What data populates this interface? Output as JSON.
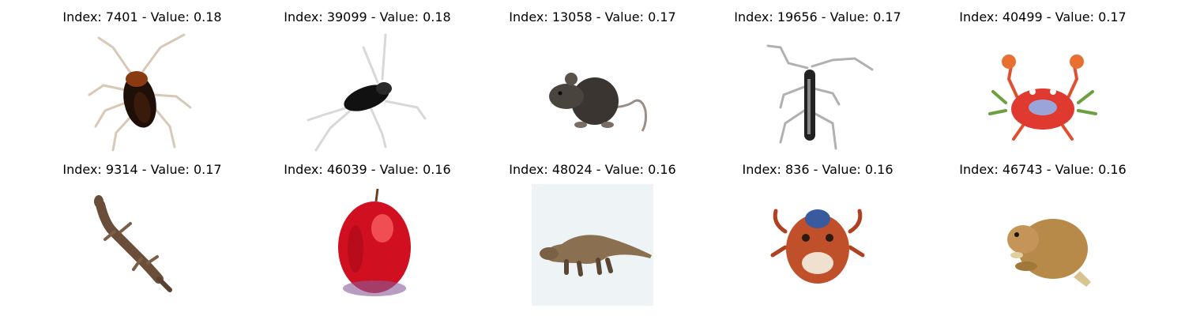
{
  "grid": {
    "items": [
      {
        "title": "Index: 7401 - Value: 0.18",
        "image": "cockroach-image"
      },
      {
        "title": "Index: 39099 - Value: 0.18",
        "image": "black-insect-image"
      },
      {
        "title": "Index: 13058 - Value: 0.17",
        "image": "rat-image"
      },
      {
        "title": "Index: 19656 - Value: 0.17",
        "image": "longhorn-beetle-image"
      },
      {
        "title": "Index: 40499 - Value: 0.17",
        "image": "crab-image"
      },
      {
        "title": "Index: 9314 - Value: 0.17",
        "image": "lizard-image"
      },
      {
        "title": "Index: 46039 - Value: 0.16",
        "image": "apple-image"
      },
      {
        "title": "Index: 48024 - Value: 0.16",
        "image": "dinosaur-image"
      },
      {
        "title": "Index: 836 - Value: 0.16",
        "image": "crab-face-image"
      },
      {
        "title": "Index: 46743 - Value: 0.16",
        "image": "beaver-image"
      }
    ]
  }
}
